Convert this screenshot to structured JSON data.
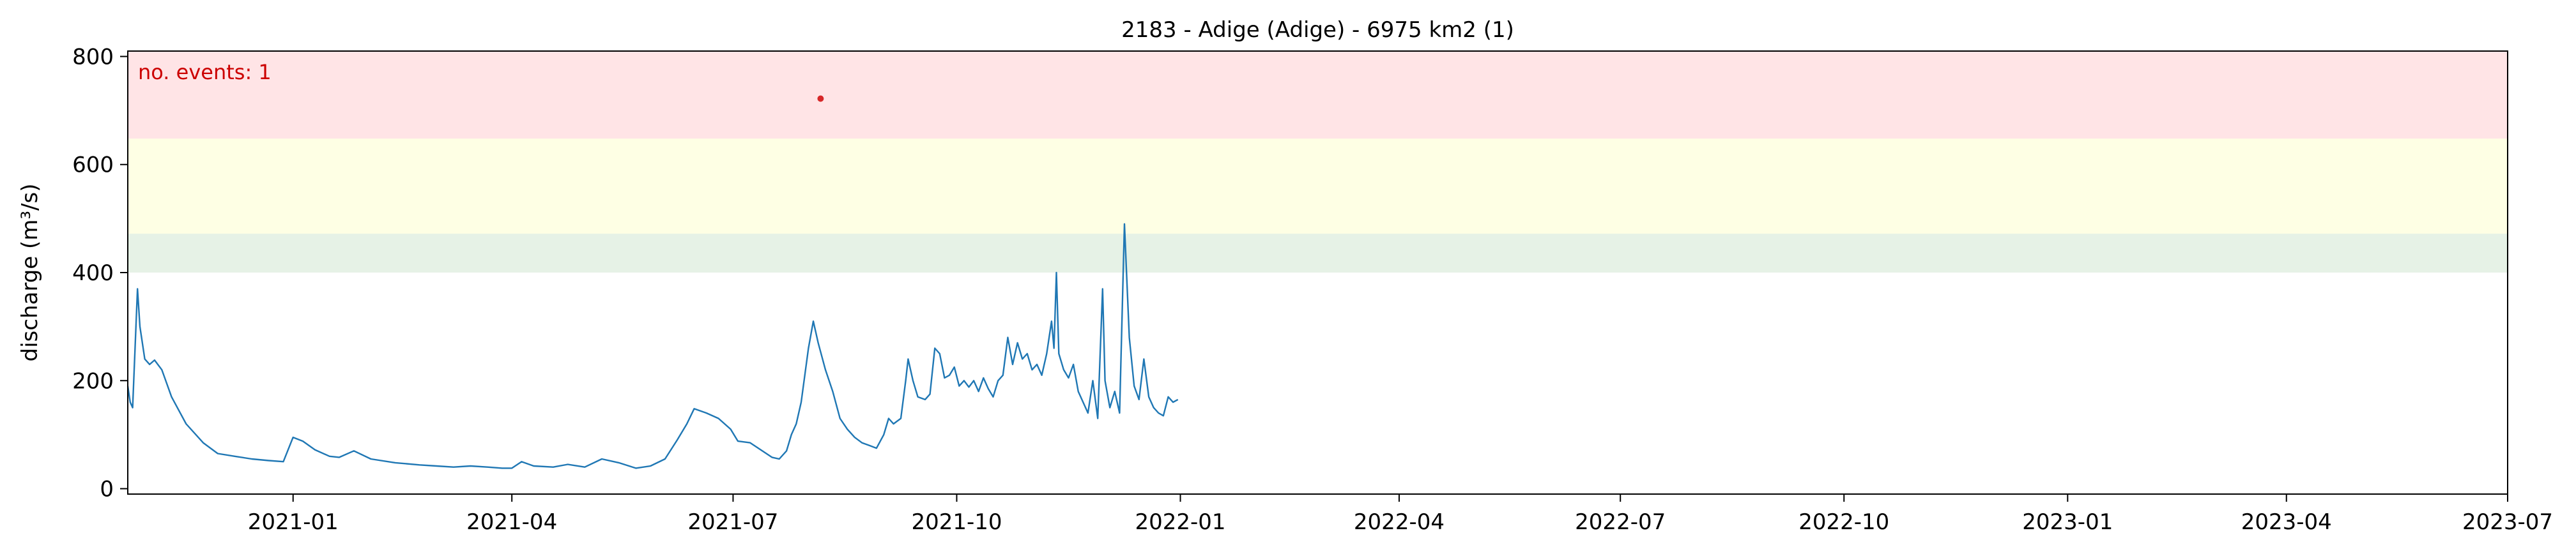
{
  "chart_data": {
    "type": "line",
    "title": "2183 - Adige (Adige) - 6975 km2 (1)",
    "xlabel": "",
    "ylabel": "discharge (m³/s)",
    "x_range": [
      "2020-10-25",
      "2023-07-01"
    ],
    "ylim": [
      -10,
      810
    ],
    "grid": false,
    "x_ticks": [
      "2021-01",
      "2021-04",
      "2021-07",
      "2021-10",
      "2022-01",
      "2022-04",
      "2022-07",
      "2022-10",
      "2023-01",
      "2023-04",
      "2023-07"
    ],
    "y_ticks": [
      0,
      200,
      400,
      600,
      800
    ],
    "threshold_bands": [
      {
        "from": 400,
        "to": 472,
        "color": "#e6f2e6"
      },
      {
        "from": 472,
        "to": 648,
        "color": "#feffe4"
      },
      {
        "from": 648,
        "to": 810,
        "color": "#ffe4e6"
      }
    ],
    "annotation": {
      "text": "no. events: 1",
      "color": "#cc0000"
    },
    "event_marker": {
      "x": "2021-08-06",
      "y": 722,
      "color": "#d62728"
    },
    "series": [
      {
        "color": "#1f77b4",
        "points": [
          [
            "2020-10-25",
            190
          ],
          [
            "2020-10-26",
            160
          ],
          [
            "2020-10-27",
            150
          ],
          [
            "2020-10-28",
            260
          ],
          [
            "2020-10-29",
            370
          ],
          [
            "2020-10-30",
            300
          ],
          [
            "2020-11-01",
            240
          ],
          [
            "2020-11-03",
            230
          ],
          [
            "2020-11-05",
            238
          ],
          [
            "2020-11-08",
            220
          ],
          [
            "2020-11-12",
            170
          ],
          [
            "2020-11-18",
            120
          ],
          [
            "2020-11-25",
            85
          ],
          [
            "2020-12-01",
            65
          ],
          [
            "2020-12-08",
            60
          ],
          [
            "2020-12-15",
            55
          ],
          [
            "2020-12-22",
            52
          ],
          [
            "2020-12-28",
            50
          ],
          [
            "2021-01-01",
            95
          ],
          [
            "2021-01-05",
            88
          ],
          [
            "2021-01-10",
            72
          ],
          [
            "2021-01-16",
            60
          ],
          [
            "2021-01-20",
            58
          ],
          [
            "2021-01-26",
            70
          ],
          [
            "2021-02-02",
            55
          ],
          [
            "2021-02-12",
            48
          ],
          [
            "2021-02-22",
            44
          ],
          [
            "2021-03-01",
            42
          ],
          [
            "2021-03-08",
            40
          ],
          [
            "2021-03-15",
            42
          ],
          [
            "2021-03-22",
            40
          ],
          [
            "2021-03-28",
            38
          ],
          [
            "2021-04-01",
            38
          ],
          [
            "2021-04-05",
            50
          ],
          [
            "2021-04-10",
            42
          ],
          [
            "2021-04-18",
            40
          ],
          [
            "2021-04-24",
            45
          ],
          [
            "2021-05-01",
            40
          ],
          [
            "2021-05-08",
            55
          ],
          [
            "2021-05-15",
            48
          ],
          [
            "2021-05-22",
            38
          ],
          [
            "2021-05-28",
            42
          ],
          [
            "2021-06-03",
            55
          ],
          [
            "2021-06-08",
            90
          ],
          [
            "2021-06-12",
            120
          ],
          [
            "2021-06-15",
            148
          ],
          [
            "2021-06-20",
            140
          ],
          [
            "2021-06-25",
            130
          ],
          [
            "2021-06-30",
            110
          ],
          [
            "2021-07-03",
            88
          ],
          [
            "2021-07-08",
            85
          ],
          [
            "2021-07-13",
            70
          ],
          [
            "2021-07-17",
            58
          ],
          [
            "2021-07-20",
            55
          ],
          [
            "2021-07-23",
            70
          ],
          [
            "2021-07-25",
            100
          ],
          [
            "2021-07-27",
            120
          ],
          [
            "2021-07-29",
            160
          ],
          [
            "2021-08-01",
            260
          ],
          [
            "2021-08-03",
            310
          ],
          [
            "2021-08-05",
            270
          ],
          [
            "2021-08-08",
            220
          ],
          [
            "2021-08-11",
            180
          ],
          [
            "2021-08-14",
            130
          ],
          [
            "2021-08-17",
            110
          ],
          [
            "2021-08-20",
            95
          ],
          [
            "2021-08-23",
            85
          ],
          [
            "2021-08-26",
            80
          ],
          [
            "2021-08-29",
            75
          ],
          [
            "2021-09-01",
            100
          ],
          [
            "2021-09-03",
            130
          ],
          [
            "2021-09-05",
            120
          ],
          [
            "2021-09-08",
            130
          ],
          [
            "2021-09-10",
            200
          ],
          [
            "2021-09-11",
            240
          ],
          [
            "2021-09-13",
            200
          ],
          [
            "2021-09-15",
            170
          ],
          [
            "2021-09-18",
            165
          ],
          [
            "2021-09-20",
            175
          ],
          [
            "2021-09-22",
            260
          ],
          [
            "2021-09-24",
            250
          ],
          [
            "2021-09-26",
            205
          ],
          [
            "2021-09-28",
            210
          ],
          [
            "2021-09-30",
            225
          ],
          [
            "2021-10-02",
            190
          ],
          [
            "2021-10-04",
            200
          ],
          [
            "2021-10-06",
            188
          ],
          [
            "2021-10-08",
            200
          ],
          [
            "2021-10-10",
            180
          ],
          [
            "2021-10-12",
            205
          ],
          [
            "2021-10-14",
            185
          ],
          [
            "2021-10-16",
            170
          ],
          [
            "2021-10-18",
            200
          ],
          [
            "2021-10-20",
            210
          ],
          [
            "2021-10-22",
            280
          ],
          [
            "2021-10-24",
            230
          ],
          [
            "2021-10-26",
            270
          ],
          [
            "2021-10-28",
            240
          ],
          [
            "2021-10-30",
            250
          ],
          [
            "2021-11-01",
            220
          ],
          [
            "2021-11-03",
            230
          ],
          [
            "2021-11-05",
            210
          ],
          [
            "2021-11-07",
            250
          ],
          [
            "2021-11-09",
            310
          ],
          [
            "2021-11-10",
            260
          ],
          [
            "2021-11-11",
            400
          ],
          [
            "2021-11-12",
            250
          ],
          [
            "2021-11-14",
            220
          ],
          [
            "2021-11-16",
            205
          ],
          [
            "2021-11-18",
            230
          ],
          [
            "2021-11-20",
            180
          ],
          [
            "2021-11-22",
            160
          ],
          [
            "2021-11-24",
            140
          ],
          [
            "2021-11-26",
            200
          ],
          [
            "2021-11-28",
            130
          ],
          [
            "2021-11-30",
            370
          ],
          [
            "2021-12-01",
            200
          ],
          [
            "2021-12-03",
            150
          ],
          [
            "2021-12-05",
            180
          ],
          [
            "2021-12-07",
            140
          ],
          [
            "2021-12-09",
            490
          ],
          [
            "2021-12-11",
            280
          ],
          [
            "2021-12-13",
            190
          ],
          [
            "2021-12-15",
            165
          ],
          [
            "2021-12-17",
            240
          ],
          [
            "2021-12-19",
            170
          ],
          [
            "2021-12-21",
            150
          ],
          [
            "2021-12-23",
            140
          ],
          [
            "2021-12-25",
            135
          ],
          [
            "2021-12-27",
            170
          ],
          [
            "2021-12-29",
            160
          ],
          [
            "2021-12-31",
            165
          ]
        ]
      }
    ]
  }
}
